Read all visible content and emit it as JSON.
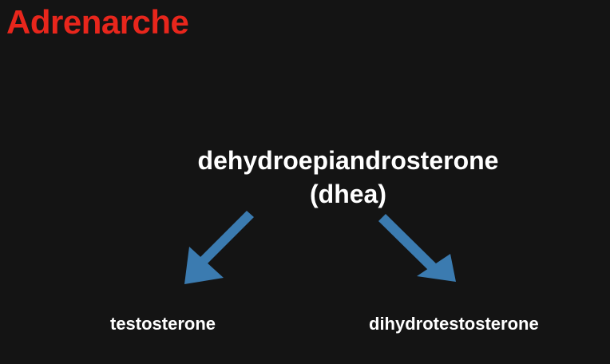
{
  "slide": {
    "title": "Adrenarche",
    "root_term": {
      "line1": "dehydroepiandrosterone",
      "line2": "(dhea)"
    },
    "products": [
      {
        "label": "testosterone"
      },
      {
        "label": "dihydrotestosterone"
      }
    ]
  },
  "colors": {
    "background": "#141414",
    "title": "#e8261c",
    "text": "#ffffff",
    "arrow": "#3b7bb0"
  }
}
